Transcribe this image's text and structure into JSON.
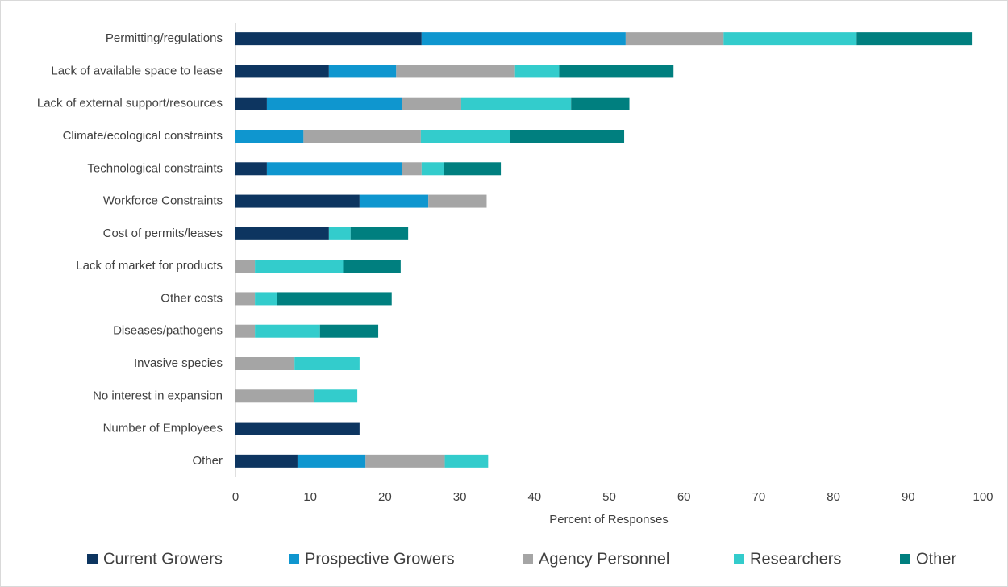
{
  "chart_data": {
    "type": "stacked-bar-horizontal",
    "x_label": "Percent of Responses",
    "categories": [
      "Permitting/regulations",
      "Lack of available space to lease",
      "Lack of external support/resources",
      "Climate/ecological constraints",
      "Technological constraints",
      "Workforce Constraints",
      "Cost of permits/leases",
      "Lack of market for products",
      "Other costs",
      "Diseases/pathogens",
      "Invasive species",
      "No interest in expansion",
      "Number of Employees",
      "Other"
    ],
    "series": [
      {
        "name": "Current Growers",
        "color": "#0d3560",
        "values": [
          24.9,
          12.5,
          4.2,
          0,
          4.2,
          16.6,
          12.5,
          0,
          0,
          0,
          0,
          0,
          16.6,
          8.3
        ]
      },
      {
        "name": "Prospective Growers",
        "color": "#0f96cf",
        "values": [
          27.3,
          9.0,
          18.1,
          9.1,
          18.1,
          9.2,
          0,
          0,
          0,
          0,
          0,
          0,
          0,
          9.1
        ]
      },
      {
        "name": "Agency Personnel",
        "color": "#a5a5a5",
        "values": [
          13.1,
          15.9,
          7.9,
          15.7,
          2.6,
          7.8,
          0,
          2.6,
          2.6,
          2.6,
          7.9,
          10.5,
          0,
          10.6
        ]
      },
      {
        "name": "Researchers",
        "color": "#33cccc",
        "values": [
          17.8,
          5.9,
          14.7,
          11.9,
          3.0,
          0,
          2.9,
          11.8,
          3.0,
          8.7,
          8.7,
          5.8,
          0,
          5.8
        ]
      },
      {
        "name": "Other",
        "color": "#007f7f",
        "values": [
          15.4,
          15.3,
          7.8,
          15.3,
          7.6,
          0,
          7.7,
          7.7,
          15.3,
          7.8,
          0,
          0,
          0,
          0
        ]
      }
    ],
    "xlim": [
      0,
      100
    ],
    "xticks": [
      0,
      10,
      20,
      30,
      40,
      50,
      60,
      70,
      80,
      90,
      100
    ]
  }
}
